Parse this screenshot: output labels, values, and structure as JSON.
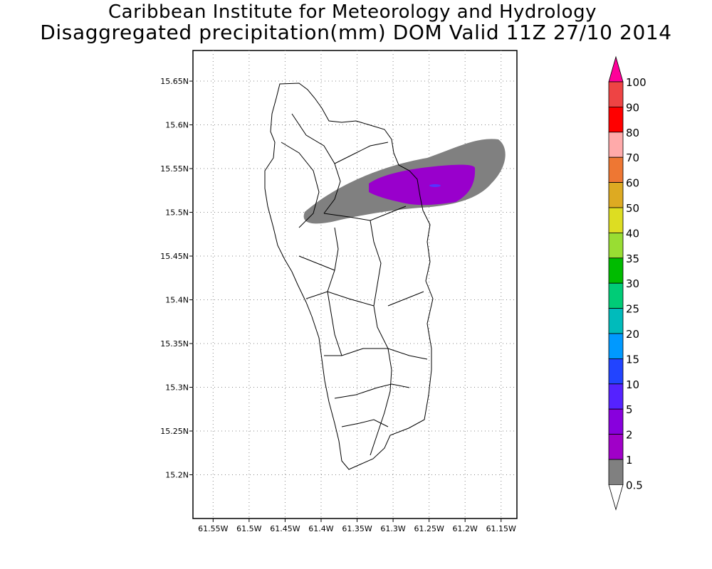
{
  "title": {
    "line1": "Caribbean Institute for Meteorology and Hydrology",
    "line2": "Disaggregated precipitation(mm) DOM Valid 11Z 27/10 2014"
  },
  "axes": {
    "lat_ticks": [
      "15.65N",
      "15.6N",
      "15.55N",
      "15.5N",
      "15.45N",
      "15.4N",
      "15.35N",
      "15.3N",
      "15.25N",
      "15.2N"
    ],
    "lat_values": [
      15.65,
      15.6,
      15.55,
      15.5,
      15.45,
      15.4,
      15.35,
      15.3,
      15.25,
      15.2
    ],
    "lon_ticks": [
      "61.55W",
      "61.5W",
      "61.45W",
      "61.4W",
      "61.35W",
      "61.3W",
      "61.25W",
      "61.2W",
      "61.15W"
    ],
    "lon_values": [
      -61.55,
      -61.5,
      -61.45,
      -61.4,
      -61.35,
      -61.3,
      -61.25,
      -61.2,
      -61.15
    ],
    "lon_range": [
      -61.578,
      -61.128
    ],
    "lat_range": [
      15.15,
      15.685
    ],
    "grid": "dotted"
  },
  "colorbar": {
    "labels": [
      "100",
      "90",
      "80",
      "70",
      "60",
      "50",
      "40",
      "35",
      "30",
      "25",
      "20",
      "15",
      "10",
      "5",
      "2",
      "1",
      "0.5"
    ],
    "colors_top_to_bottom": [
      "#ff0099",
      "#ee4444",
      "#ff0000",
      "#ffaaaa",
      "#ee7733",
      "#ddaa22",
      "#dddd22",
      "#99dd33",
      "#00bb00",
      "#00cc77",
      "#00bbbb",
      "#0099ff",
      "#2244ff",
      "#5522ff",
      "#8800dd",
      "#a000c8",
      "#808080",
      "#ffffff"
    ]
  },
  "precip_layers": [
    {
      "level": "0.5-1 mm",
      "color": "#808080"
    },
    {
      "level": "1-2 mm",
      "color": "#9900cc"
    },
    {
      "level": "5-10 mm",
      "color": "#5533ff"
    }
  ],
  "region": "DOM"
}
